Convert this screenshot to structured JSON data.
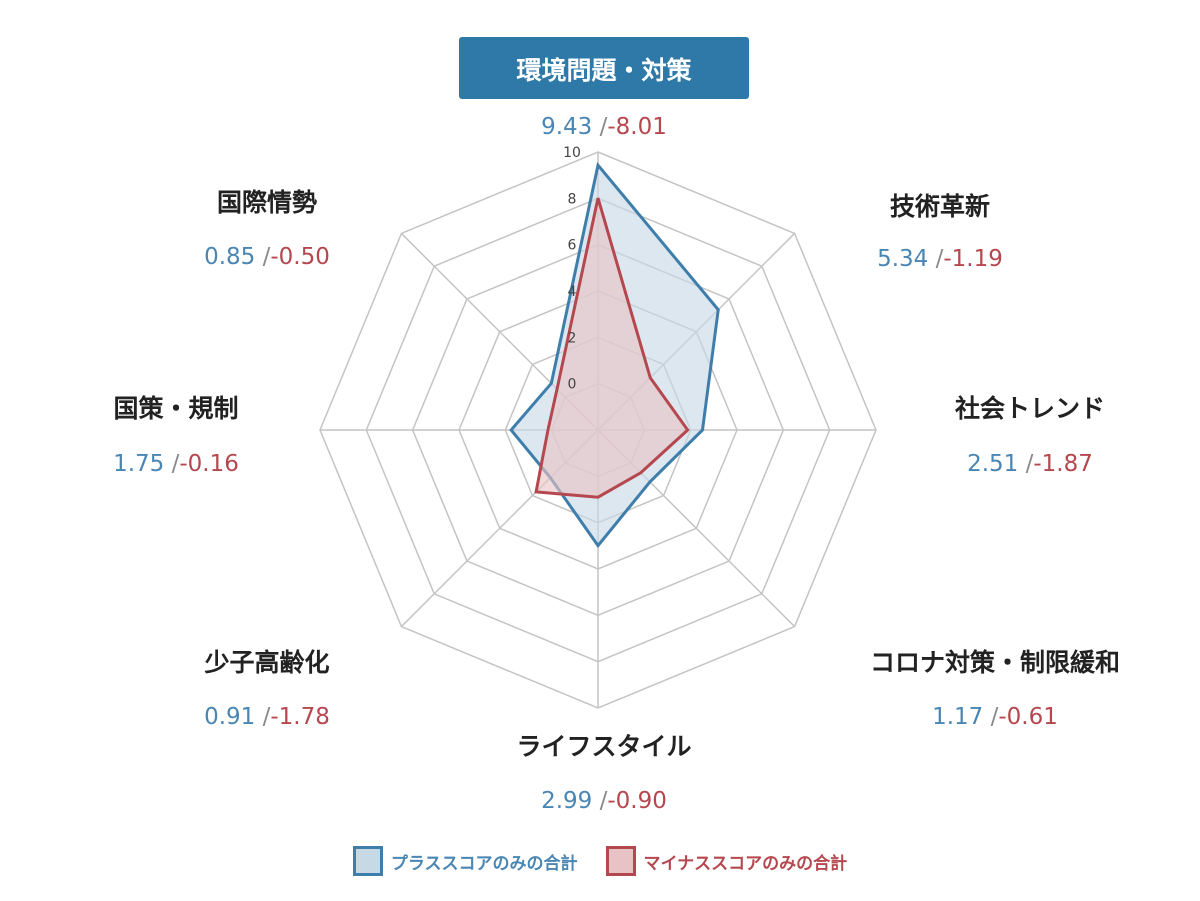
{
  "chart_data": {
    "type": "radar",
    "highlighted_axis": "環境問題・対策",
    "axes": [
      {
        "label": "環境問題・対策",
        "plus": 9.43,
        "plus_text": "9.43",
        "minus": -8.01,
        "minus_text": "-8.01"
      },
      {
        "label": "技術革新",
        "plus": 5.34,
        "plus_text": "5.34",
        "minus": -1.19,
        "minus_text": "-1.19"
      },
      {
        "label": "社会トレンド",
        "plus": 2.51,
        "plus_text": "2.51",
        "minus": -1.87,
        "minus_text": "-1.87"
      },
      {
        "label": "コロナ対策・制限緩和",
        "plus": 1.17,
        "plus_text": "1.17",
        "minus": -0.61,
        "minus_text": "-0.61"
      },
      {
        "label": "ライフスタイル",
        "plus": 2.99,
        "plus_text": "2.99",
        "minus": -0.9,
        "minus_text": "-0.90"
      },
      {
        "label": "少子高齢化",
        "plus": 0.91,
        "plus_text": "0.91",
        "minus": -1.78,
        "minus_text": "-1.78"
      },
      {
        "label": "国策・規制",
        "plus": 1.75,
        "plus_text": "1.75",
        "minus": -0.16,
        "minus_text": "-0.16"
      },
      {
        "label": "国際情勢",
        "plus": 0.85,
        "plus_text": "0.85",
        "minus": -0.5,
        "minus_text": "-0.50"
      }
    ],
    "series": [
      {
        "name": "プラススコアのみの合計",
        "key": "plus",
        "color": "#3f7eab",
        "fill": "#c8d9e6"
      },
      {
        "name": "マイナススコアのみの合計",
        "key": "minus",
        "color": "#b5484f",
        "fill": "#e8c3c5"
      }
    ],
    "radial_range": [
      -2,
      10
    ],
    "ticks": [
      0,
      2,
      4,
      6,
      8,
      10
    ],
    "tick_labels": [
      "0",
      "2",
      "4",
      "6",
      "8",
      "10"
    ],
    "value_separator": "/",
    "grid": true,
    "legend_position": "bottom",
    "colors": {
      "grid": "#c4c4c4",
      "highlight_box": "#2e79a8"
    }
  }
}
